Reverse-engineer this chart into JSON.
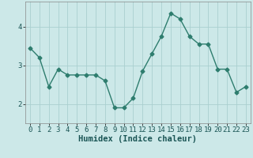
{
  "x": [
    0,
    1,
    2,
    3,
    4,
    5,
    6,
    7,
    8,
    9,
    10,
    11,
    12,
    13,
    14,
    15,
    16,
    17,
    18,
    19,
    20,
    21,
    22,
    23
  ],
  "y": [
    3.45,
    3.2,
    2.45,
    2.9,
    2.75,
    2.75,
    2.75,
    2.75,
    2.6,
    1.9,
    1.9,
    2.15,
    2.85,
    3.3,
    3.75,
    4.35,
    4.2,
    3.75,
    3.55,
    3.55,
    2.9,
    2.9,
    2.3,
    2.45
  ],
  "line_color": "#2e7d6e",
  "marker": "D",
  "markersize": 2.5,
  "linewidth": 1.0,
  "bg_color": "#cce8e8",
  "grid_color": "#aacfcf",
  "xlabel": "Humidex (Indice chaleur)",
  "xlim": [
    -0.5,
    23.5
  ],
  "ylim": [
    1.5,
    4.65
  ],
  "yticks": [
    2,
    3,
    4
  ],
  "xticks": [
    0,
    1,
    2,
    3,
    4,
    5,
    6,
    7,
    8,
    9,
    10,
    11,
    12,
    13,
    14,
    15,
    16,
    17,
    18,
    19,
    20,
    21,
    22,
    23
  ],
  "xlabel_fontsize": 7.5,
  "tick_fontsize": 6.5
}
